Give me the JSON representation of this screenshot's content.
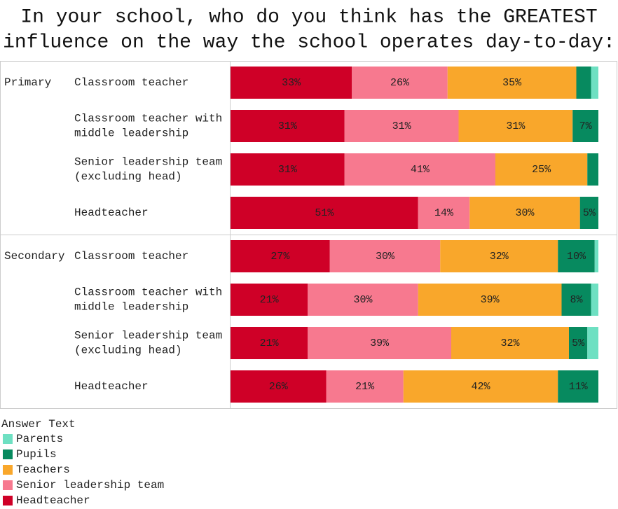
{
  "chart_data": {
    "type": "stacked-bar-horizontal",
    "title": [
      "In your school, who do you think has the GREATEST",
      "influence on the way the school operates day-to-day:"
    ],
    "groups": [
      "Primary",
      null,
      null,
      null,
      "Secondary",
      null,
      null,
      null
    ],
    "categories": [
      [
        "Classroom teacher"
      ],
      [
        "Classroom teacher with",
        "middle leadership"
      ],
      [
        "Senior leadership team",
        "(excluding head)"
      ],
      [
        "Headteacher"
      ],
      [
        "Classroom teacher"
      ],
      [
        "Classroom teacher with",
        "middle leadership"
      ],
      [
        "Senior leadership team",
        "(excluding head)"
      ],
      [
        "Headteacher"
      ]
    ],
    "xlim": [
      0,
      100
    ],
    "legend_title": "Answer Text",
    "series": [
      {
        "name": "Headteacher",
        "color": "#cf0027",
        "values": [
          33,
          31,
          31,
          51,
          27,
          21,
          21,
          26
        ],
        "value_labels": [
          "33%",
          "31%",
          "31%",
          "51%",
          "27%",
          "21%",
          "21%",
          "26%"
        ]
      },
      {
        "name": "Senior leadership team",
        "color": "#f7798f",
        "values": [
          26,
          31,
          41,
          14,
          30,
          30,
          39,
          21
        ],
        "value_labels": [
          "26%",
          "31%",
          "41%",
          "14%",
          "30%",
          "30%",
          "39%",
          "21%"
        ]
      },
      {
        "name": "Teachers",
        "color": "#f9a72b",
        "values": [
          35,
          31,
          25,
          30,
          32,
          39,
          32,
          42
        ],
        "value_labels": [
          "35%",
          "31%",
          "25%",
          "30%",
          "32%",
          "39%",
          "32%",
          "42%"
        ]
      },
      {
        "name": "Pupils",
        "color": "#078a5f",
        "values": [
          4,
          7,
          3,
          5,
          10,
          8,
          5,
          11
        ],
        "value_labels": [
          null,
          "7%",
          null,
          "5%",
          "10%",
          "8%",
          "5%",
          "11%"
        ]
      },
      {
        "name": "Parents",
        "color": "#6ee0c2",
        "values": [
          2,
          0,
          0,
          0,
          1,
          2,
          3,
          0
        ],
        "value_labels": [
          null,
          null,
          null,
          null,
          null,
          null,
          null,
          null
        ]
      }
    ]
  }
}
